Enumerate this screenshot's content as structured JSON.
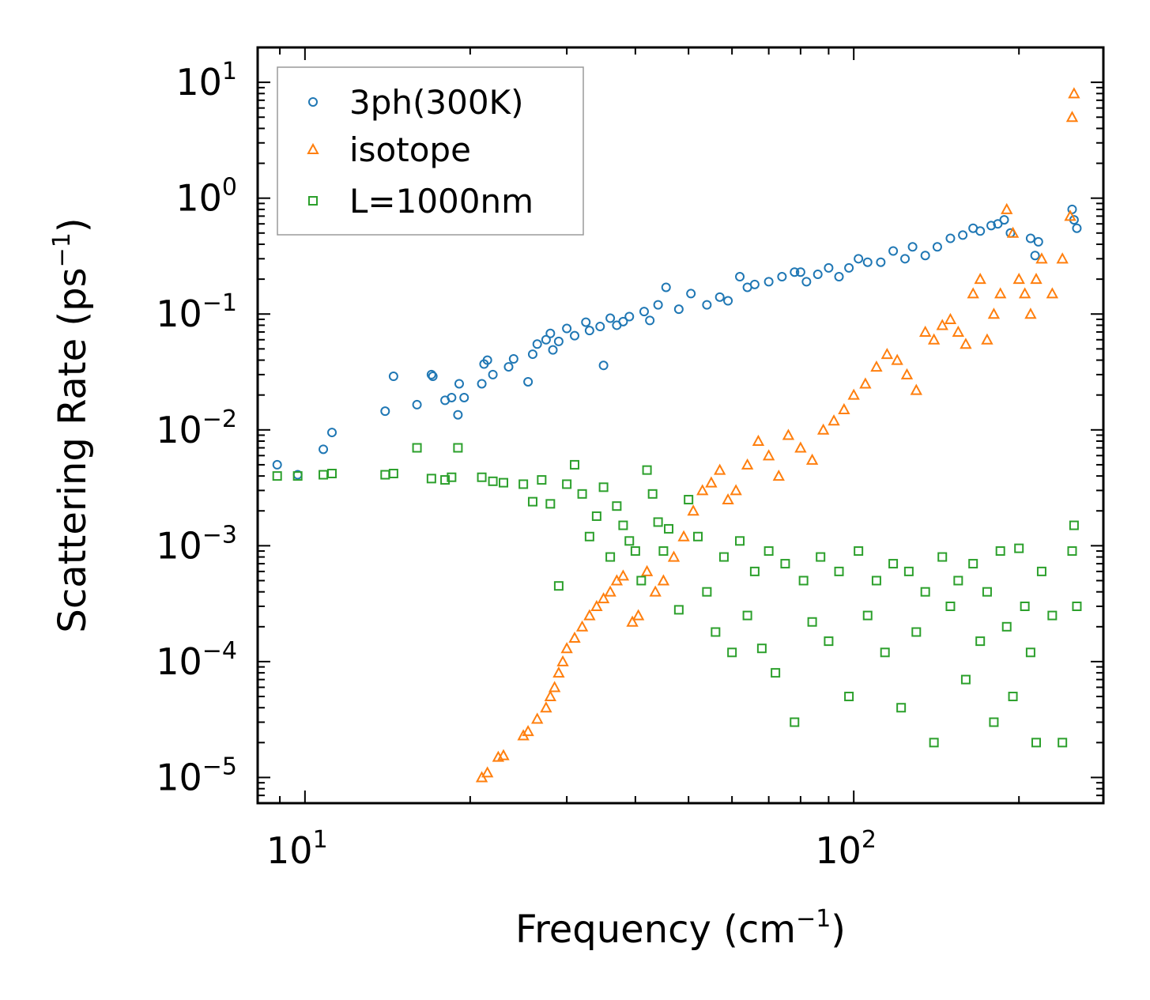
{
  "chart_data": {
    "type": "scatter",
    "xscale": "log",
    "yscale": "log",
    "xlim": [
      8.2,
      285
    ],
    "ylim": [
      6e-06,
      20
    ],
    "xlabel": "Frequency (cm",
    "xlabel_sup": "−1",
    "xlabel_tail": ")",
    "ylabel": "Scattering Rate (ps",
    "ylabel_sup": "−1",
    "ylabel_tail": ")",
    "x_ticks": [
      {
        "value": 10,
        "base": "10",
        "exp": "1"
      },
      {
        "value": 100,
        "base": "10",
        "exp": "2"
      }
    ],
    "y_ticks": [
      {
        "value": 10,
        "base": "10",
        "exp": "1"
      },
      {
        "value": 1,
        "base": "10",
        "exp": "0"
      },
      {
        "value": 0.1,
        "base": "10",
        "exp": "−1"
      },
      {
        "value": 0.01,
        "base": "10",
        "exp": "−2"
      },
      {
        "value": 0.001,
        "base": "10",
        "exp": "−3"
      },
      {
        "value": 0.0001,
        "base": "10",
        "exp": "−4"
      },
      {
        "value": 1e-05,
        "base": "10",
        "exp": "−5"
      }
    ],
    "legend_position": "top-left",
    "series": [
      {
        "name": "3ph(300K)",
        "marker": "circle",
        "color": "#1f77b4",
        "x": [
          8.9,
          9.7,
          10.8,
          11.2,
          14.0,
          14.5,
          16.0,
          17.0,
          17.1,
          18.0,
          18.5,
          19.0,
          19.1,
          19.5,
          21.0,
          21.2,
          21.5,
          22.0,
          23.5,
          24.0,
          25.5,
          26.0,
          26.5,
          27.5,
          28.0,
          28.3,
          29.0,
          30.0,
          31.0,
          32.5,
          33.0,
          34.5,
          35.0,
          36.0,
          37.0,
          38.0,
          39.0,
          41.5,
          42.5,
          44.0,
          45.5,
          48.0,
          50.5,
          54.0,
          57.0,
          59.0,
          62.0,
          64.0,
          66.0,
          70.0,
          74.0,
          78.0,
          80.0,
          82.0,
          86.0,
          90.0,
          94.0,
          98.0,
          102.0,
          106.0,
          112.0,
          118.0,
          124.0,
          128.0,
          135.0,
          142.0,
          150.0,
          158.0,
          165.0,
          170.0,
          178.0,
          183.0,
          188.0,
          193.0,
          210.0,
          214.0,
          217.0,
          250.0,
          252.0,
          255.0
        ],
        "y": [
          0.005,
          0.0041,
          0.0068,
          0.0095,
          0.0145,
          0.029,
          0.0165,
          0.03,
          0.029,
          0.018,
          0.019,
          0.0135,
          0.025,
          0.019,
          0.025,
          0.037,
          0.04,
          0.03,
          0.035,
          0.041,
          0.026,
          0.045,
          0.055,
          0.06,
          0.068,
          0.049,
          0.058,
          0.075,
          0.065,
          0.085,
          0.072,
          0.078,
          0.036,
          0.092,
          0.08,
          0.086,
          0.095,
          0.105,
          0.088,
          0.12,
          0.17,
          0.11,
          0.15,
          0.12,
          0.14,
          0.13,
          0.21,
          0.17,
          0.18,
          0.19,
          0.21,
          0.23,
          0.23,
          0.19,
          0.22,
          0.25,
          0.21,
          0.25,
          0.3,
          0.28,
          0.28,
          0.35,
          0.3,
          0.38,
          0.32,
          0.38,
          0.45,
          0.48,
          0.55,
          0.52,
          0.58,
          0.6,
          0.65,
          0.5,
          0.45,
          0.32,
          0.42,
          0.8,
          0.65,
          0.55
        ]
      },
      {
        "name": "isotope",
        "marker": "triangle",
        "color": "#ff7f0e",
        "x": [
          21.0,
          21.5,
          22.5,
          23.0,
          25.0,
          25.5,
          26.5,
          27.5,
          28.0,
          28.5,
          29.0,
          29.5,
          30.0,
          31.0,
          32.0,
          33.0,
          34.0,
          35.0,
          36.0,
          37.0,
          38.0,
          39.5,
          40.5,
          42.0,
          43.5,
          45.0,
          47.0,
          49.0,
          51.0,
          53.0,
          55.0,
          57.0,
          59.0,
          61.0,
          64.0,
          67.0,
          70.0,
          73.0,
          76.0,
          80.0,
          84.0,
          88.0,
          92.0,
          96.0,
          100.0,
          105.0,
          110.0,
          115.0,
          120.0,
          125.0,
          130.0,
          135.0,
          140.0,
          145.0,
          150.0,
          155.0,
          160.0,
          165.0,
          170.0,
          175.0,
          180.0,
          185.0,
          190.0,
          195.0,
          200.0,
          205.0,
          210.0,
          215.0,
          220.0,
          230.0,
          240.0,
          248.0,
          250.0,
          252.0
        ],
        "y": [
          1e-05,
          1.1e-05,
          1.5e-05,
          1.55e-05,
          2.3e-05,
          2.5e-05,
          3.2e-05,
          4e-05,
          5e-05,
          6e-05,
          8e-05,
          0.0001,
          0.00013,
          0.00016,
          0.0002,
          0.00025,
          0.0003,
          0.00035,
          0.0004,
          0.0005,
          0.00055,
          0.00022,
          0.00025,
          0.0006,
          0.0004,
          0.0005,
          0.0008,
          0.0012,
          0.002,
          0.003,
          0.0035,
          0.0045,
          0.0025,
          0.003,
          0.005,
          0.008,
          0.006,
          0.004,
          0.009,
          0.007,
          0.0055,
          0.01,
          0.012,
          0.015,
          0.02,
          0.025,
          0.035,
          0.045,
          0.04,
          0.03,
          0.022,
          0.07,
          0.06,
          0.08,
          0.09,
          0.07,
          0.055,
          0.15,
          0.2,
          0.06,
          0.1,
          0.15,
          0.8,
          0.5,
          0.2,
          0.15,
          0.1,
          0.2,
          0.3,
          0.15,
          0.3,
          0.7,
          5.0,
          8.0
        ]
      },
      {
        "name": "L=1000nm",
        "marker": "square",
        "color": "#2ca02c",
        "x": [
          8.9,
          9.7,
          10.8,
          11.2,
          14.0,
          14.5,
          16.0,
          17.0,
          18.0,
          18.5,
          19.0,
          21.0,
          22.0,
          23.0,
          25.0,
          26.0,
          27.0,
          28.0,
          29.0,
          30.0,
          31.0,
          32.0,
          33.0,
          34.0,
          35.0,
          36.0,
          37.0,
          38.0,
          39.0,
          40.0,
          41.0,
          42.0,
          43.0,
          44.0,
          45.0,
          46.0,
          48.0,
          50.0,
          52.0,
          54.0,
          56.0,
          58.0,
          60.0,
          62.0,
          64.0,
          66.0,
          68.0,
          70.0,
          72.0,
          75.0,
          78.0,
          81.0,
          84.0,
          87.0,
          90.0,
          94.0,
          98.0,
          102.0,
          106.0,
          110.0,
          114.0,
          118.0,
          122.0,
          126.0,
          130.0,
          135.0,
          140.0,
          145.0,
          150.0,
          155.0,
          160.0,
          165.0,
          170.0,
          175.0,
          180.0,
          185.0,
          190.0,
          195.0,
          200.0,
          205.0,
          210.0,
          215.0,
          220.0,
          230.0,
          240.0,
          250.0,
          252.0,
          255.0
        ],
        "y": [
          0.004,
          0.004,
          0.0041,
          0.0042,
          0.0041,
          0.0042,
          0.007,
          0.0038,
          0.0037,
          0.0039,
          0.007,
          0.0039,
          0.0036,
          0.0035,
          0.0034,
          0.0024,
          0.0037,
          0.0023,
          0.00045,
          0.0034,
          0.005,
          0.0028,
          0.0012,
          0.0018,
          0.0032,
          0.0008,
          0.0022,
          0.0015,
          0.0011,
          0.0009,
          0.0005,
          0.0045,
          0.0028,
          0.0016,
          0.0009,
          0.0014,
          0.00028,
          0.0025,
          0.0012,
          0.0004,
          0.00018,
          0.0008,
          0.00012,
          0.0011,
          0.00025,
          0.0006,
          0.00013,
          0.0009,
          8e-05,
          0.0007,
          3e-05,
          0.0005,
          0.00022,
          0.0008,
          0.00015,
          0.0006,
          5e-05,
          0.0009,
          0.00025,
          0.0005,
          0.00012,
          0.0007,
          4e-05,
          0.0006,
          0.00018,
          0.0004,
          2e-05,
          0.0008,
          0.0003,
          0.0005,
          7e-05,
          0.0007,
          0.00015,
          0.0004,
          3e-05,
          0.0009,
          0.0002,
          5e-05,
          0.00095,
          0.0003,
          0.00012,
          2e-05,
          0.0006,
          0.00025,
          2e-05,
          0.0009,
          0.0015,
          0.0003
        ]
      }
    ]
  }
}
